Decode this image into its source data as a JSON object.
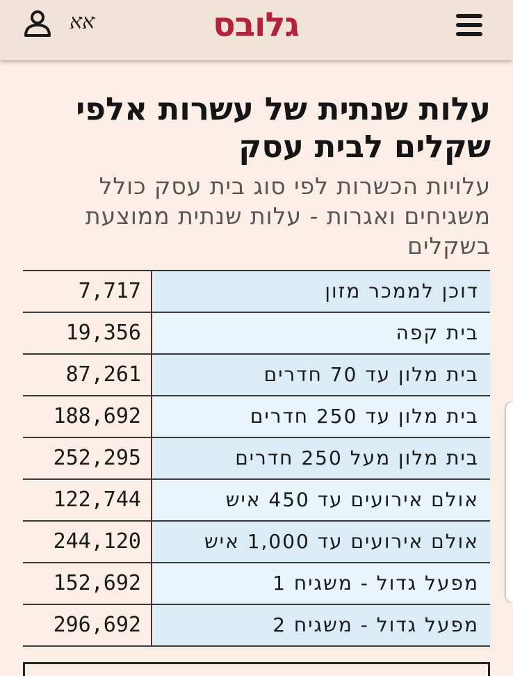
{
  "header": {
    "logo_text": "גלובס",
    "lang_toggle": "אא",
    "icons": {
      "menu": "hamburger-menu-icon",
      "user": "user-icon"
    },
    "brand_color": "#b3243c"
  },
  "article": {
    "title": "עלות שנתית של עשרות אלפי שקלים לבית עסק",
    "subtitle": "עלויות הכשרות לפי סוג בית עסק כולל משגיחים ואגרות - עלות שנתית ממוצעת בשקלים"
  },
  "table": {
    "rows": [
      {
        "label": "דוכן לממכר מזון",
        "value": "7,717"
      },
      {
        "label": "בית קפה",
        "value": "19,356"
      },
      {
        "label": "בית מלון עד 70 חדרים",
        "value": "87,261"
      },
      {
        "label": "בית מלון עד 250 חדרים",
        "value": "188,692"
      },
      {
        "label": "בית מלון מעל 250 חדרים",
        "value": "252,295"
      },
      {
        "label": "אולם אירועים עד 450 איש",
        "value": "122,744"
      },
      {
        "label": "אולם אירועים עד 1,000 איש",
        "value": "244,120"
      },
      {
        "label": "מפעל גדול - משגיח 1",
        "value": "152,692"
      },
      {
        "label": "מפעל גדול - משגיח 2",
        "value": "296,692"
      }
    ]
  }
}
